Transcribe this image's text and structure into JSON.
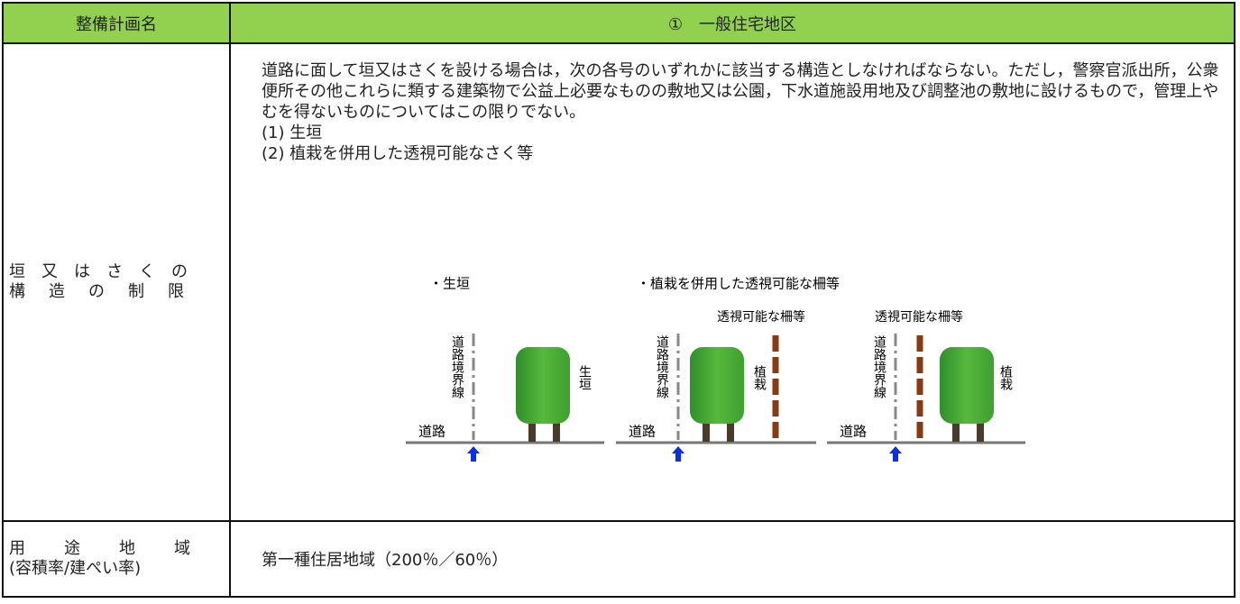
{
  "header": {
    "label": "整備計画名",
    "title": "①　一般住宅地区"
  },
  "rows": [
    {
      "label": [
        "垣又はさくの",
        "構造の制限"
      ],
      "text": "道路に面して垣又はさくを設ける場合は，次の各号のいずれかに該当する構造としなければならない。ただし，警察官派出所，公衆便所その他これらに類する建築物で公益上必要なものの敷地又は公園，下水道施設用地及び調整池の敷地に設けるもので，管理上やむを得ないものについてはこの限りでない。",
      "items": [
        "(1) 生垣",
        "(2) 植栽を併用した透視可能なさく等"
      ],
      "diagram": {
        "captions": [
          "・生垣",
          "・植栽を併用した透視可能な柵等"
        ],
        "panels": [
          {
            "road": "道路",
            "boundary": "道路境界線",
            "plant": "生垣"
          },
          {
            "road": "道路",
            "boundary": "道路境界線",
            "plant": "植栽",
            "fence": "透視可能な柵等"
          },
          {
            "road": "道路",
            "boundary": "道路境界線",
            "plant": "植栽",
            "fence": "透視可能な柵等"
          }
        ]
      }
    },
    {
      "label": [
        "用途地域",
        "(容積率/建ぺい率)"
      ],
      "text": "第一種住居地域（200％／60％）"
    }
  ]
}
